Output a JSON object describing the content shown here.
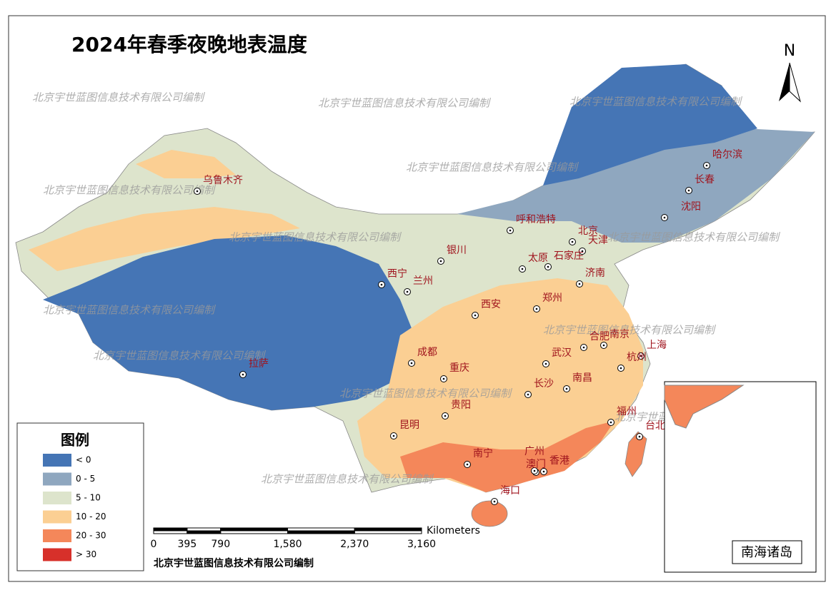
{
  "title": "2024年春季夜晚地表温度",
  "north": "N",
  "watermark": "北京宇世蓝图信息技术有限公司编制",
  "credit": "北京宇世蓝图信息技术有限公司编制",
  "inset_label": "南海诸岛",
  "legend": {
    "title": "图例",
    "items": [
      {
        "label": "< 0",
        "color": "#4575b5"
      },
      {
        "label": "0 - 5",
        "color": "#8fa7bf"
      },
      {
        "label": "5 - 10",
        "color": "#dde4cc"
      },
      {
        "label": "10 - 20",
        "color": "#fbcf93"
      },
      {
        "label": "20 - 30",
        "color": "#f4875a"
      },
      {
        "label": "> 30",
        "color": "#d7302a"
      }
    ]
  },
  "scale_bar": {
    "unit": "Kilometers",
    "ticks": [
      0,
      395,
      790,
      {
        "value": 1580,
        "label": "1,580"
      },
      {
        "value": 2370,
        "label": "2,370"
      },
      {
        "value": 3160,
        "label": "3,160"
      }
    ]
  },
  "cities": [
    "乌鲁木齐",
    "拉萨",
    "西宁",
    "兰州",
    "银川",
    "呼和浩特",
    "北京",
    "天津",
    "太原",
    "石家庄",
    "济南",
    "郑州",
    "西安",
    "合肥",
    "南京",
    "上海",
    "杭州",
    "武汉",
    "成都",
    "重庆",
    "长沙",
    "南昌",
    "贵阳",
    "昆明",
    "福州",
    "台北",
    "南宁",
    "广州",
    "澳门",
    "香港",
    "海口",
    "哈尔滨",
    "长春",
    "沈阳"
  ]
}
